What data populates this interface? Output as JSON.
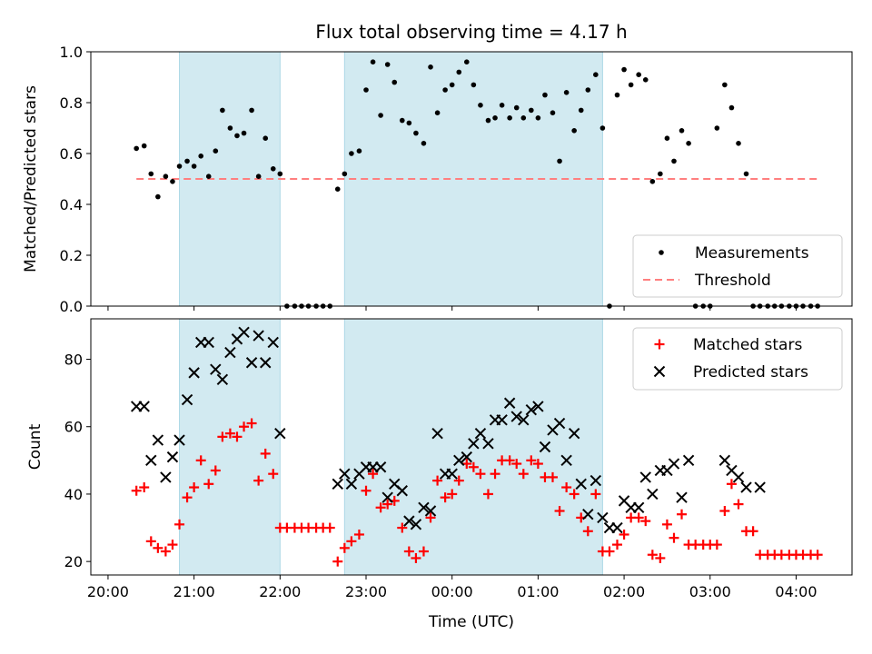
{
  "title": "Flux total observing time = 4.17 h",
  "colors": {
    "shade": "#add8e6",
    "threshold": "#ff7f7f",
    "measurement": "#000000",
    "matched": "#ff0000",
    "predicted": "#000000"
  },
  "chart_data": [
    {
      "type": "scatter",
      "ylabel": "Matched/Predicted stars",
      "xlim": [
        19.8,
        4.65
      ],
      "ylim": [
        0,
        1.0
      ],
      "y_ticks": [
        0.0,
        0.2,
        0.4,
        0.6,
        0.8,
        1.0
      ],
      "y_tick_labels": [
        "0.0",
        "0.2",
        "0.4",
        "0.6",
        "0.8",
        "1.0"
      ],
      "legend": {
        "position": "bottom-right",
        "entries": [
          "Measurements",
          "Threshold"
        ]
      },
      "threshold": {
        "name": "Threshold",
        "value": 0.5,
        "x_range": [
          20.33,
          4.25
        ]
      },
      "shaded_spans": [
        [
          20.83,
          22.0
        ],
        [
          22.75,
          1.75
        ]
      ],
      "series": [
        {
          "name": "Measurements",
          "x": [
            20.33,
            20.42,
            20.5,
            20.58,
            20.67,
            20.75,
            20.83,
            20.92,
            21.0,
            21.08,
            21.17,
            21.25,
            21.33,
            21.42,
            21.5,
            21.58,
            21.67,
            21.75,
            21.83,
            21.92,
            22.0,
            22.08,
            22.17,
            22.25,
            22.33,
            22.42,
            22.5,
            22.58,
            22.67,
            22.75,
            22.83,
            22.92,
            23.0,
            23.08,
            23.17,
            23.25,
            23.33,
            23.42,
            23.5,
            23.58,
            23.67,
            23.75,
            23.83,
            23.92,
            24.0,
            24.08,
            24.17,
            24.25,
            24.33,
            24.42,
            24.5,
            24.58,
            24.67,
            24.75,
            24.83,
            24.92,
            25.0,
            25.08,
            25.17,
            25.25,
            25.33,
            25.42,
            25.5,
            25.58,
            25.67,
            25.75,
            25.83,
            25.92,
            26.0,
            26.08,
            26.17,
            26.25,
            26.33,
            26.42,
            26.5,
            26.58,
            26.67,
            26.75,
            26.83,
            26.92,
            27.0,
            27.08,
            27.17,
            27.25,
            27.33,
            27.42,
            27.5,
            27.58,
            27.67,
            27.75,
            27.83,
            27.92,
            28.0,
            28.08,
            28.17,
            28.25
          ],
          "y": [
            0.62,
            0.63,
            0.52,
            0.43,
            0.51,
            0.49,
            0.55,
            0.57,
            0.55,
            0.59,
            0.51,
            0.61,
            0.77,
            0.7,
            0.67,
            0.68,
            0.77,
            0.51,
            0.66,
            0.54,
            0.52,
            0,
            0,
            0,
            0,
            0,
            0,
            0,
            0.46,
            0.52,
            0.6,
            0.61,
            0.85,
            0.96,
            0.75,
            0.95,
            0.88,
            0.73,
            0.72,
            0.68,
            0.64,
            0.94,
            0.76,
            0.85,
            0.87,
            0.92,
            0.96,
            0.87,
            0.79,
            0.73,
            0.74,
            0.79,
            0.74,
            0.78,
            0.74,
            0.77,
            0.74,
            0.83,
            0.76,
            0.57,
            0.84,
            0.69,
            0.77,
            0.85,
            0.91,
            0.7,
            0,
            0.83,
            0.93,
            0.87,
            0.91,
            0.89,
            0.49,
            0.52,
            0.66,
            0.57,
            0.69,
            0.64,
            0,
            0,
            0,
            0.7,
            0.87,
            0.78,
            0.64,
            0.52,
            0,
            0,
            0,
            0,
            0,
            0,
            0,
            0,
            0,
            0
          ]
        }
      ]
    },
    {
      "type": "scatter",
      "xlabel": "Time (UTC)",
      "ylabel": "Count",
      "xlim": [
        19.8,
        4.65
      ],
      "ylim": [
        16,
        92
      ],
      "y_ticks": [
        20,
        40,
        60,
        80
      ],
      "y_tick_labels": [
        "20",
        "40",
        "60",
        "80"
      ],
      "x_ticks": [
        20,
        21,
        22,
        23,
        24,
        25,
        26,
        27,
        28
      ],
      "x_tick_labels": [
        "20:00",
        "21:00",
        "22:00",
        "23:00",
        "00:00",
        "01:00",
        "02:00",
        "03:00",
        "04:00"
      ],
      "legend": {
        "position": "top-right",
        "entries": [
          "Matched stars",
          "Predicted stars"
        ]
      },
      "shaded_spans": [
        [
          20.83,
          22.0
        ],
        [
          22.75,
          1.75
        ]
      ],
      "series": [
        {
          "name": "Matched stars",
          "marker": "+",
          "x": [
            20.33,
            20.42,
            20.5,
            20.58,
            20.67,
            20.75,
            20.83,
            20.92,
            21.0,
            21.08,
            21.17,
            21.25,
            21.33,
            21.42,
            21.5,
            21.58,
            21.67,
            21.75,
            21.83,
            21.92,
            22.0,
            22.08,
            22.17,
            22.25,
            22.33,
            22.42,
            22.5,
            22.58,
            22.67,
            22.75,
            22.83,
            22.92,
            23.0,
            23.08,
            23.17,
            23.25,
            23.33,
            23.42,
            23.5,
            23.58,
            23.67,
            23.75,
            23.83,
            23.92,
            24.0,
            24.08,
            24.17,
            24.25,
            24.33,
            24.42,
            24.5,
            24.58,
            24.67,
            24.75,
            24.83,
            24.92,
            25.0,
            25.08,
            25.17,
            25.25,
            25.33,
            25.42,
            25.5,
            25.58,
            25.67,
            25.75,
            25.83,
            25.92,
            26.0,
            26.08,
            26.17,
            26.25,
            26.33,
            26.42,
            26.5,
            26.58,
            26.67,
            26.75,
            26.83,
            26.92,
            27.0,
            27.08,
            27.17,
            27.25,
            27.33,
            27.42,
            27.5,
            27.58,
            27.67,
            27.75,
            27.83,
            27.92,
            28.0,
            28.08,
            28.17,
            28.25
          ],
          "y": [
            41,
            42,
            26,
            24,
            23,
            25,
            31,
            39,
            42,
            50,
            43,
            47,
            57,
            58,
            57,
            60,
            61,
            44,
            52,
            46,
            30,
            30,
            30,
            30,
            30,
            30,
            30,
            30,
            20,
            24,
            26,
            28,
            41,
            46,
            36,
            37,
            38,
            30,
            23,
            21,
            23,
            33,
            44,
            39,
            40,
            44,
            49,
            48,
            46,
            40,
            46,
            50,
            50,
            49,
            46,
            50,
            49,
            45,
            45,
            35,
            42,
            40,
            33,
            29,
            40,
            23,
            23,
            25,
            28,
            33,
            33,
            32,
            22,
            21,
            31,
            27,
            34,
            25,
            25,
            25,
            25,
            25,
            35,
            43,
            37,
            29,
            29,
            22,
            22,
            22,
            22,
            22,
            22,
            22,
            22,
            22
          ]
        },
        {
          "name": "Predicted stars",
          "marker": "x",
          "x": [
            20.33,
            20.42,
            20.5,
            20.58,
            20.67,
            20.75,
            20.83,
            20.92,
            21.0,
            21.08,
            21.17,
            21.25,
            21.33,
            21.42,
            21.5,
            21.58,
            21.67,
            21.75,
            21.83,
            21.92,
            22.0,
            22.67,
            22.75,
            22.83,
            22.92,
            23.0,
            23.08,
            23.17,
            23.25,
            23.33,
            23.42,
            23.5,
            23.58,
            23.67,
            23.75,
            23.83,
            23.92,
            24.0,
            24.08,
            24.17,
            24.25,
            24.33,
            24.42,
            24.5,
            24.58,
            24.67,
            24.75,
            24.83,
            24.92,
            25.0,
            25.08,
            25.17,
            25.25,
            25.33,
            25.42,
            25.5,
            25.58,
            25.67,
            25.75,
            25.83,
            25.92,
            26.0,
            26.08,
            26.17,
            26.25,
            26.33,
            26.42,
            26.5,
            26.58,
            26.67,
            26.75,
            27.17,
            27.25,
            27.33,
            27.42,
            27.58
          ],
          "y": [
            66,
            66,
            50,
            56,
            45,
            51,
            56,
            68,
            76,
            85,
            85,
            77,
            74,
            82,
            86,
            88,
            79,
            87,
            79,
            85,
            58,
            43,
            46,
            43,
            46,
            48,
            48,
            48,
            39,
            43,
            41,
            32,
            31,
            36,
            35,
            58,
            46,
            46,
            50,
            51,
            55,
            58,
            55,
            62,
            62,
            67,
            63,
            62,
            65,
            66,
            54,
            59,
            61,
            50,
            58,
            43,
            34,
            44,
            33,
            30,
            30,
            38,
            36,
            36,
            45,
            40,
            47,
            47,
            49,
            39,
            50,
            50,
            47,
            45,
            42,
            42
          ]
        }
      ]
    }
  ]
}
